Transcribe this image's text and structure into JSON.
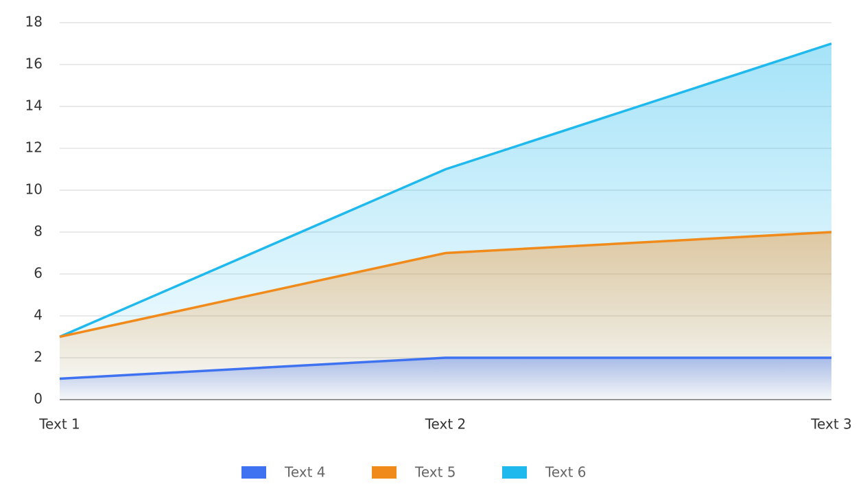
{
  "chart_data": {
    "type": "area",
    "categories": [
      "Text 1",
      "Text 2",
      "Text 3"
    ],
    "series": [
      {
        "name": "Text 4",
        "color": "#3e72f0",
        "values": [
          1,
          2,
          2
        ]
      },
      {
        "name": "Text 5",
        "color": "#f08a1a",
        "values": [
          3,
          7,
          8
        ]
      },
      {
        "name": "Text 6",
        "color": "#1fb9ee",
        "values": [
          3,
          11,
          17
        ]
      }
    ],
    "ylim": [
      0,
      18
    ],
    "yticks": [
      0,
      2,
      4,
      6,
      8,
      10,
      12,
      14,
      16,
      18
    ],
    "grid": true,
    "legend": "bottom"
  }
}
